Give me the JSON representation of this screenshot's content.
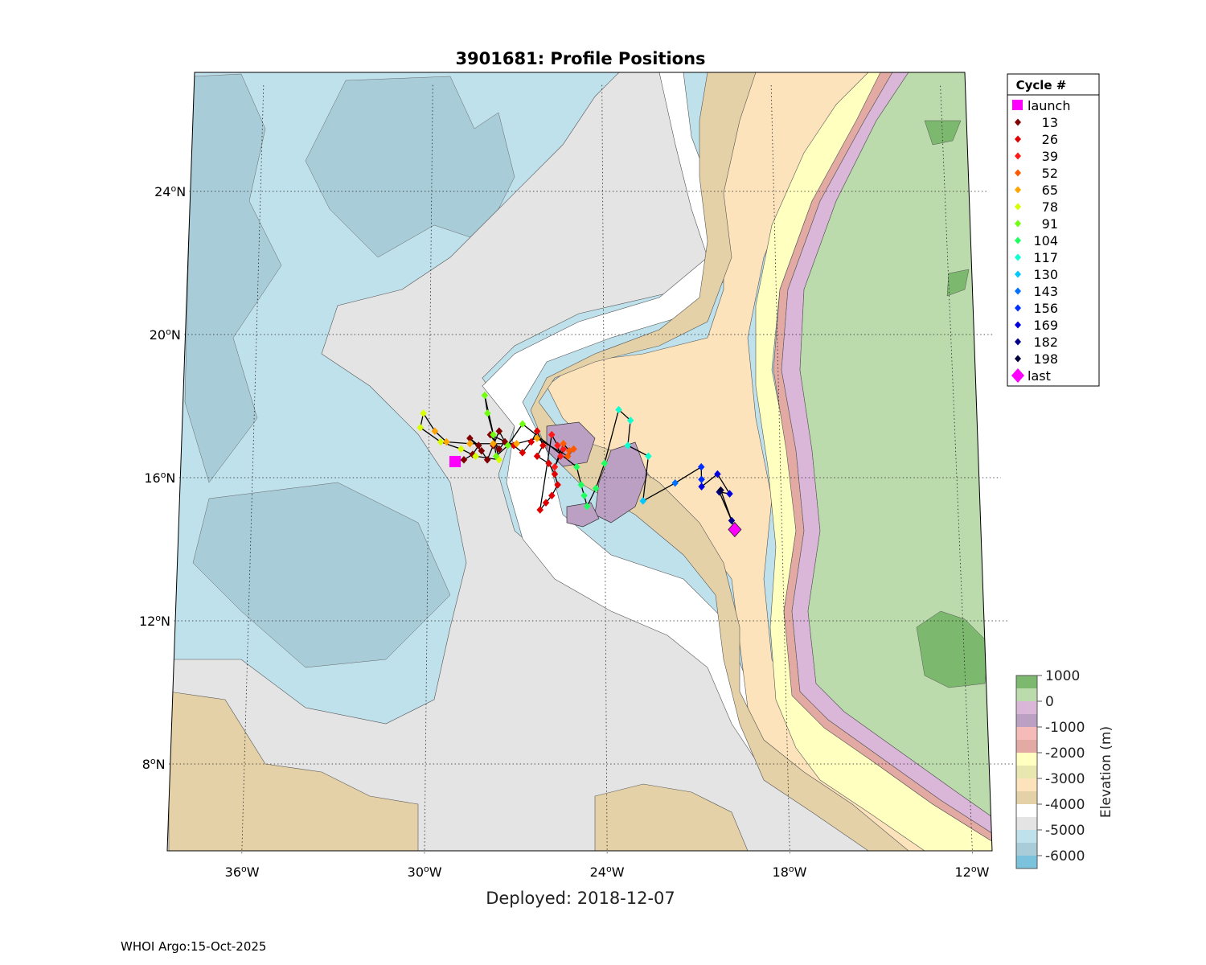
{
  "title": "3901681: Profile Positions",
  "deployed_text": "Deployed: 2018-12-07",
  "footer_text": "WHOI Argo:15-Oct-2025",
  "lat_ticks": [
    {
      "value": 24,
      "label": "24",
      "hemi": "N"
    },
    {
      "value": 20,
      "label": "20",
      "hemi": "N"
    },
    {
      "value": 16,
      "label": "16",
      "hemi": "N"
    },
    {
      "value": 12,
      "label": "12",
      "hemi": "N"
    },
    {
      "value": 8,
      "label": "8",
      "hemi": "N"
    }
  ],
  "lon_ticks": [
    {
      "value": -36,
      "label": "36",
      "hemi": "W"
    },
    {
      "value": -30,
      "label": "30",
      "hemi": "W"
    },
    {
      "value": -24,
      "label": "24",
      "hemi": "W"
    },
    {
      "value": -18,
      "label": "18",
      "hemi": "W"
    },
    {
      "value": -12,
      "label": "12",
      "hemi": "W"
    }
  ],
  "legend": {
    "title": "Cycle #",
    "entries": [
      {
        "label": "launch",
        "color": "#ff00ff",
        "marker": "square"
      },
      {
        "label": "13",
        "color": "#800000",
        "marker": "diamond"
      },
      {
        "label": "26",
        "color": "#e00000",
        "marker": "diamond"
      },
      {
        "label": "39",
        "color": "#ff1a1a",
        "marker": "diamond"
      },
      {
        "label": "52",
        "color": "#ff5a00",
        "marker": "diamond"
      },
      {
        "label": "65",
        "color": "#ffa500",
        "marker": "diamond"
      },
      {
        "label": "78",
        "color": "#d8ff00",
        "marker": "diamond"
      },
      {
        "label": "91",
        "color": "#70ff10",
        "marker": "diamond"
      },
      {
        "label": "104",
        "color": "#20ff60",
        "marker": "diamond"
      },
      {
        "label": "117",
        "color": "#10ffd0",
        "marker": "diamond"
      },
      {
        "label": "130",
        "color": "#00c8ff",
        "marker": "diamond"
      },
      {
        "label": "143",
        "color": "#0070ff",
        "marker": "diamond"
      },
      {
        "label": "156",
        "color": "#0030ff",
        "marker": "diamond"
      },
      {
        "label": "169",
        "color": "#0000e0",
        "marker": "diamond"
      },
      {
        "label": "182",
        "color": "#00008a",
        "marker": "diamond"
      },
      {
        "label": "198",
        "color": "#000040",
        "marker": "diamond"
      },
      {
        "label": "last",
        "color": "#ff00ff",
        "marker": "big-diamond"
      }
    ]
  },
  "colorbar": {
    "label": "Elevation (m)",
    "tick_labels": [
      "1000",
      "0",
      "-1000",
      "-2000",
      "-3000",
      "-4000",
      "-5000",
      "-6000"
    ],
    "band_colors": [
      "#7db86f",
      "#bcdbad",
      "#dab6d9",
      "#bba0c4",
      "#f6bab8",
      "#e2aaa3",
      "#ffffc0",
      "#e9e7b0",
      "#fce3bb",
      "#e5d1a7",
      "#ffffff",
      "#e4e4e4",
      "#bfe1ec",
      "#a8ccd8",
      "#7bc2dc"
    ]
  },
  "chart_data": {
    "type": "scatter",
    "x_unit": "degrees longitude",
    "y_unit": "degrees latitude",
    "xlim": [
      -38.5,
      -11
    ],
    "ylim": [
      5.5,
      27
    ],
    "grid": true,
    "launch": {
      "lon": -29.1,
      "lat": 16.45
    },
    "last": {
      "lon": -19.6,
      "lat": 14.55
    },
    "profiles": [
      {
        "cycle_group": "13",
        "color": "#800000",
        "points": [
          [
            -29.1,
            16.45
          ],
          [
            -28.8,
            16.5
          ],
          [
            -28.5,
            16.65
          ],
          [
            -28.3,
            16.9
          ],
          [
            -28.6,
            17.1
          ],
          [
            -28.2,
            16.75
          ],
          [
            -28.0,
            16.5
          ],
          [
            -27.8,
            16.9
          ],
          [
            -27.6,
            17.3
          ],
          [
            -27.4,
            17.0
          ],
          [
            -27.6,
            16.8
          ],
          [
            -27.9,
            17.2
          ]
        ]
      },
      {
        "cycle_group": "26",
        "color": "#e00000",
        "points": [
          [
            -27.1,
            16.9
          ],
          [
            -26.8,
            16.7
          ],
          [
            -26.5,
            17.0
          ],
          [
            -26.3,
            17.3
          ],
          [
            -26.1,
            16.9
          ],
          [
            -26.3,
            16.6
          ],
          [
            -25.9,
            16.4
          ],
          [
            -25.7,
            16.1
          ],
          [
            -25.6,
            15.8
          ],
          [
            -25.8,
            15.5
          ],
          [
            -26.0,
            15.3
          ],
          [
            -26.2,
            15.1
          ]
        ]
      },
      {
        "cycle_group": "39",
        "color": "#ff1a1a",
        "points": [
          [
            -25.8,
            17.2
          ],
          [
            -25.6,
            16.9
          ],
          [
            -25.5,
            16.6
          ],
          [
            -25.4,
            16.8
          ],
          [
            -25.7,
            16.3
          ]
        ]
      },
      {
        "cycle_group": "52",
        "color": "#ff5a00",
        "points": [
          [
            -25.4,
            16.95
          ],
          [
            -25.2,
            16.75
          ],
          [
            -25.05,
            16.8
          ],
          [
            -25.25,
            16.6
          ]
        ]
      },
      {
        "cycle_group": "65",
        "color": "#ffa500",
        "points": [
          [
            -26.3,
            17.1
          ],
          [
            -27.0,
            16.95
          ],
          [
            -27.8,
            16.95
          ],
          [
            -28.6,
            16.95
          ],
          [
            -29.4,
            17.0
          ],
          [
            -29.8,
            17.3
          ]
        ]
      },
      {
        "cycle_group": "78",
        "color": "#d8ff00",
        "points": [
          [
            -30.2,
            17.8
          ],
          [
            -30.3,
            17.4
          ],
          [
            -29.6,
            17.0
          ],
          [
            -28.9,
            16.8
          ],
          [
            -28.4,
            16.6
          ],
          [
            -27.6,
            16.5
          ]
        ]
      },
      {
        "cycle_group": "91",
        "color": "#70ff10",
        "points": [
          [
            -28.1,
            18.3
          ],
          [
            -28.0,
            17.8
          ],
          [
            -27.8,
            17.2
          ],
          [
            -27.7,
            16.6
          ],
          [
            -27.3,
            16.9
          ],
          [
            -26.8,
            17.5
          ]
        ]
      },
      {
        "cycle_group": "104",
        "color": "#20ff60",
        "points": [
          [
            -24.95,
            16.3
          ],
          [
            -24.8,
            15.8
          ],
          [
            -24.7,
            15.5
          ],
          [
            -24.6,
            15.2
          ],
          [
            -24.3,
            15.7
          ],
          [
            -24.0,
            16.4
          ]
        ]
      },
      {
        "cycle_group": "117",
        "color": "#10ffd0",
        "points": [
          [
            -23.5,
            17.9
          ],
          [
            -23.1,
            17.6
          ],
          [
            -23.2,
            16.9
          ],
          [
            -22.5,
            16.6
          ]
        ]
      },
      {
        "cycle_group": "130",
        "color": "#00c8ff",
        "points": [
          [
            -22.7,
            15.35
          ]
        ]
      },
      {
        "cycle_group": "143",
        "color": "#0070ff",
        "points": [
          [
            -21.6,
            15.85
          ]
        ]
      },
      {
        "cycle_group": "156",
        "color": "#0030ff",
        "points": [
          [
            -20.7,
            16.3
          ],
          [
            -20.7,
            15.95
          ]
        ]
      },
      {
        "cycle_group": "169",
        "color": "#0000e0",
        "points": [
          [
            -20.7,
            15.75
          ],
          [
            -20.15,
            16.1
          ],
          [
            -19.75,
            15.55
          ]
        ]
      },
      {
        "cycle_group": "182",
        "color": "#00008a",
        "points": [
          [
            -20.1,
            15.6
          ],
          [
            -19.7,
            14.8
          ]
        ]
      },
      {
        "cycle_group": "198",
        "color": "#000040",
        "points": [
          [
            -20.05,
            15.65
          ],
          [
            -19.6,
            14.55
          ]
        ]
      }
    ]
  }
}
